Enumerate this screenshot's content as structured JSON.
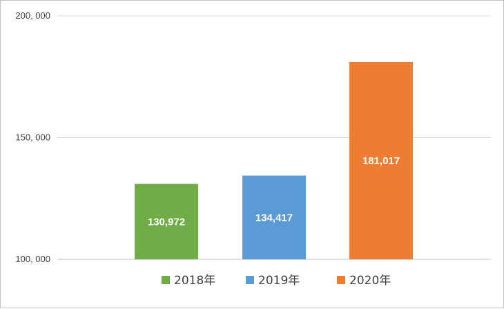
{
  "chart_data": {
    "type": "bar",
    "categories": [
      "2018年",
      "2019年",
      "2020年"
    ],
    "values": [
      130972,
      134417,
      181017
    ],
    "value_labels": [
      "130,972",
      "134,417",
      "181,017"
    ],
    "colors": [
      "#70ad47",
      "#5b9bd5",
      "#ed7d31"
    ],
    "ylim": [
      100000,
      200000
    ],
    "y_ticks": [
      {
        "value": 100000,
        "label": "100, 000"
      },
      {
        "value": 150000,
        "label": "150, 000"
      },
      {
        "value": 200000,
        "label": "200, 000"
      }
    ],
    "grid": true,
    "legend": {
      "placement": "bottom",
      "entries": [
        "2018年",
        "2019年",
        "2020年"
      ]
    },
    "title": "",
    "xlabel": "",
    "ylabel": ""
  }
}
